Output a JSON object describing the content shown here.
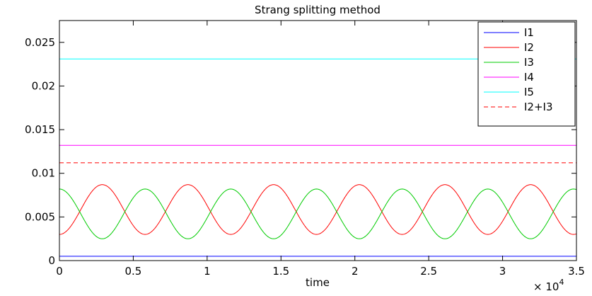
{
  "chart_data": {
    "type": "line",
    "title": "Strang splitting method",
    "xlabel": "time",
    "ylabel": "",
    "x_multiplier_label": "× 10",
    "x_multiplier_exponent": "4",
    "xlim": [
      0,
      3.5
    ],
    "ylim": [
      0,
      0.0275
    ],
    "x_ticks": [
      0,
      0.5,
      1,
      1.5,
      2,
      2.5,
      3,
      3.5
    ],
    "x_tick_labels": [
      "0",
      "0.5",
      "1",
      "1.5",
      "2",
      "2.5",
      "3",
      "3.5"
    ],
    "y_ticks": [
      0,
      0.005,
      0.01,
      0.015,
      0.02,
      0.025
    ],
    "y_tick_labels": [
      "0",
      "0.005",
      "0.01",
      "0.015",
      "0.02",
      "0.025"
    ],
    "grid": false,
    "legend_position": "top-right",
    "oscillation_period": 0.58,
    "series": [
      {
        "name": "I1",
        "color": "#0000ff",
        "dash": "solid",
        "kind": "constant",
        "value": 0.0005
      },
      {
        "name": "I2",
        "color": "#ff0000",
        "dash": "solid",
        "kind": "oscillation",
        "mean": 0.00585,
        "amplitude": 0.00285,
        "phase": "start-minimum"
      },
      {
        "name": "I3",
        "color": "#00cc00",
        "dash": "solid",
        "kind": "oscillation",
        "mean": 0.00535,
        "amplitude": 0.00285,
        "phase": "start-maximum"
      },
      {
        "name": "I4",
        "color": "#ff00ff",
        "dash": "solid",
        "kind": "constant",
        "value": 0.0132
      },
      {
        "name": "I5",
        "color": "#00ffff",
        "dash": "solid",
        "kind": "constant",
        "value": 0.0231
      },
      {
        "name": "I2+I3",
        "color": "#ff0000",
        "dash": "dashed",
        "kind": "constant",
        "value": 0.0112
      }
    ]
  }
}
